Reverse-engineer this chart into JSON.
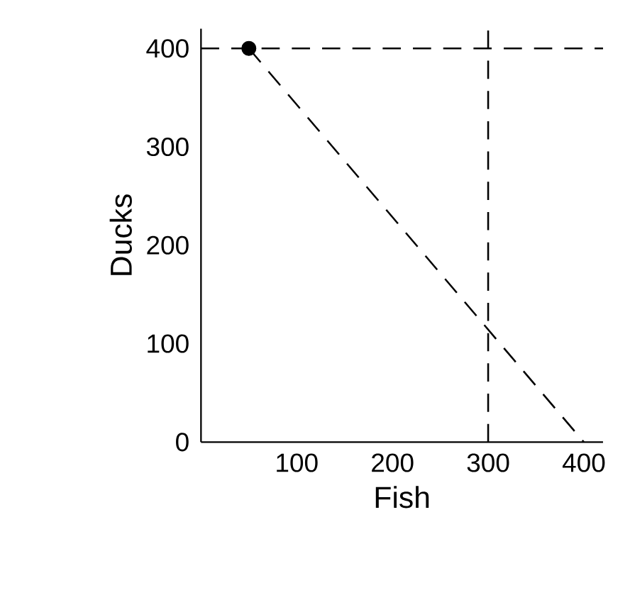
{
  "chart_data": {
    "type": "line",
    "xlabel": "Fish",
    "ylabel": "Ducks",
    "series": [
      {
        "values": [
          400,
          0
        ],
        "color": "#000000",
        "line_style": "dashed",
        "marker": "none"
      },
      {
        "type": "scatter",
        "x": [
          50
        ],
        "values": [
          400
        ],
        "color": "#000000",
        "marker": "circle"
      }
    ],
    "x": [
      50,
      400
    ],
    "xlim": [
      0,
      420
    ],
    "ylim": [
      0,
      420
    ],
    "xticks": [
      100,
      200,
      300,
      400
    ],
    "yticks": [
      0,
      100,
      200,
      300,
      400
    ],
    "ref_lines": [
      {
        "axis": "y",
        "value": 400,
        "color": "#000000",
        "line_style": "dashed"
      },
      {
        "axis": "x",
        "value": 300,
        "color": "#000000",
        "line_style": "dashed"
      }
    ]
  }
}
